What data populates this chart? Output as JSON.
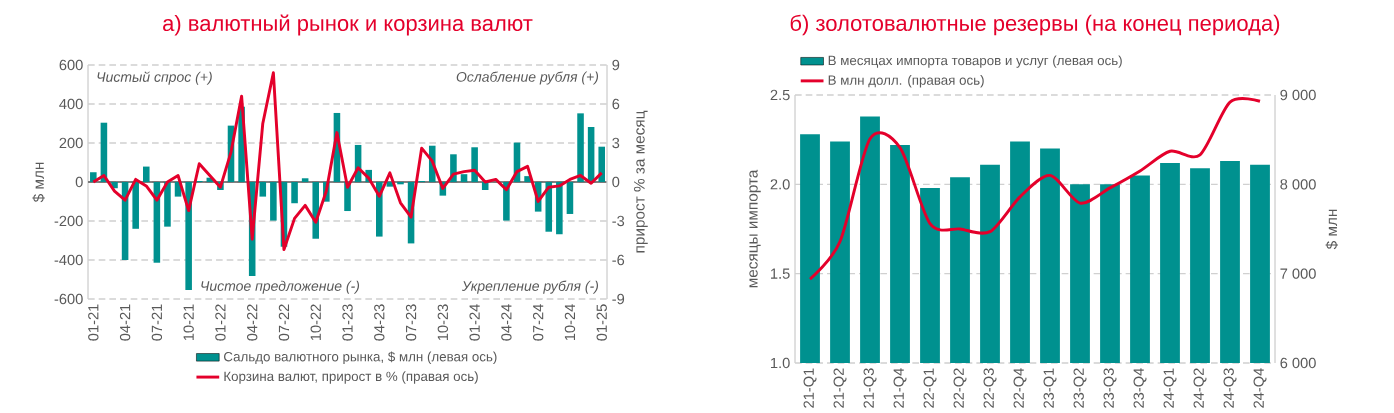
{
  "chart_data": [
    {
      "type": "bar",
      "title": "а) валютный рынок и корзина валют",
      "ylabel": "$ млн",
      "y2label": "прирост % за месяц",
      "categories": [
        "01-21",
        null,
        null,
        "04-21",
        null,
        null,
        "07-21",
        null,
        null,
        "10-21",
        null,
        null,
        "01-22",
        null,
        null,
        "04-22",
        null,
        null,
        "07-22",
        null,
        null,
        "10-22",
        null,
        null,
        "01-23",
        null,
        null,
        "04-23",
        null,
        null,
        "07-23",
        null,
        null,
        "10-23",
        null,
        null,
        "01-24",
        null,
        null,
        "04-24",
        null,
        null,
        "07-24",
        null,
        null,
        "10-24",
        null,
        null,
        "01-25"
      ],
      "series": [
        {
          "type": "bar",
          "name": "Сальдо валютного рынка, $ млн (левая ось)",
          "color": "#00918f",
          "values": [
            50,
            304,
            -32,
            -400,
            -240,
            79,
            -414,
            -229,
            -75,
            -554,
            5,
            22,
            -41,
            289,
            386,
            -482,
            -75,
            -198,
            -332,
            -109,
            19,
            -291,
            -101,
            354,
            -149,
            190,
            62,
            -280,
            -24,
            -12,
            -315,
            5,
            186,
            -70,
            142,
            40,
            178,
            -41,
            null,
            -198,
            202,
            30,
            -152,
            -255,
            -268,
            -164,
            352,
            282,
            181
          ]
        },
        {
          "type": "line",
          "axis": "y2",
          "name": "Корзина валют, прирост в % (правая ось)",
          "color": "#e4002b",
          "values": [
            0.0,
            0.5,
            -0.7,
            -1.4,
            0.2,
            -0.3,
            -1.4,
            0.0,
            0.5,
            -2.2,
            1.4,
            0.5,
            -0.4,
            2.3,
            6.6,
            -4.4,
            4.5,
            8.4,
            -5.2,
            -2.8,
            -1.8,
            -3.1,
            -0.7,
            3.8,
            -0.4,
            1.1,
            0.3,
            -1.1,
            0.7,
            -1.6,
            -2.7,
            2.6,
            1.6,
            -0.5,
            0.6,
            0.8,
            0.9,
            0.0,
            0.2,
            -0.6,
            0.8,
            1.2,
            -1.5,
            -0.4,
            -0.3,
            0.2,
            0.5,
            -0.1,
            0.7
          ]
        }
      ],
      "ylim": [
        -600,
        600
      ],
      "yticks": [
        -600,
        -400,
        -200,
        0,
        200,
        400,
        600
      ],
      "y2lim": [
        -9,
        9
      ],
      "y2ticks": [
        -9,
        -6,
        -3,
        0,
        3,
        6,
        9
      ],
      "grid": "y",
      "legend": "bottom",
      "annotations": [
        "Чистый спрос (+)",
        "Ослабление рубля (+)",
        "Чистое предложение (-)",
        "Укрепление рубля (-)"
      ]
    },
    {
      "type": "bar",
      "title": "б) золотовалютные резервы (на конец периода)",
      "ylabel": "месяцы импорта",
      "y2label": "$ млн",
      "categories": [
        "21-Q1",
        "21-Q2",
        "21-Q3",
        "21-Q4",
        "22-Q1",
        "22-Q2",
        "22-Q3",
        "22-Q4",
        "23-Q1",
        "23-Q2",
        "23-Q3",
        "23-Q4",
        "24-Q1",
        "24-Q2",
        "24-Q3",
        "24-Q4"
      ],
      "series": [
        {
          "type": "bar",
          "name": "В месяцах импорта товаров и услуг (левая ось)",
          "color": "#00918f",
          "values": [
            2.28,
            2.24,
            2.38,
            2.22,
            1.98,
            2.04,
            2.11,
            2.24,
            2.2,
            2.0,
            2.0,
            2.05,
            2.12,
            2.09,
            2.13,
            2.11
          ]
        },
        {
          "type": "line",
          "axis": "y2",
          "name": "В млн долл. (правая ось)",
          "color": "#e4002b",
          "values": [
            6940,
            7360,
            8510,
            8410,
            7560,
            7500,
            7470,
            7860,
            8100,
            7790,
            7960,
            8150,
            8370,
            8330,
            8920,
            8930
          ]
        }
      ],
      "ylim": [
        1.0,
        2.5
      ],
      "yticks": [
        {
          "value": 1.0,
          "label": "1.0"
        },
        {
          "value": 1.5,
          "label": "1.5"
        },
        {
          "value": 2.0,
          "label": "2.0"
        },
        {
          "value": 2.5,
          "label": "2.5"
        }
      ],
      "y2lim": [
        6000,
        9000
      ],
      "y2ticks": [
        {
          "value": 6000,
          "label": "6 000"
        },
        {
          "value": 7000,
          "label": "7 000"
        },
        {
          "value": 8000,
          "label": "8 000"
        },
        {
          "value": 9000,
          "label": "9 000"
        }
      ],
      "grid": "y",
      "legend": "top left"
    }
  ]
}
